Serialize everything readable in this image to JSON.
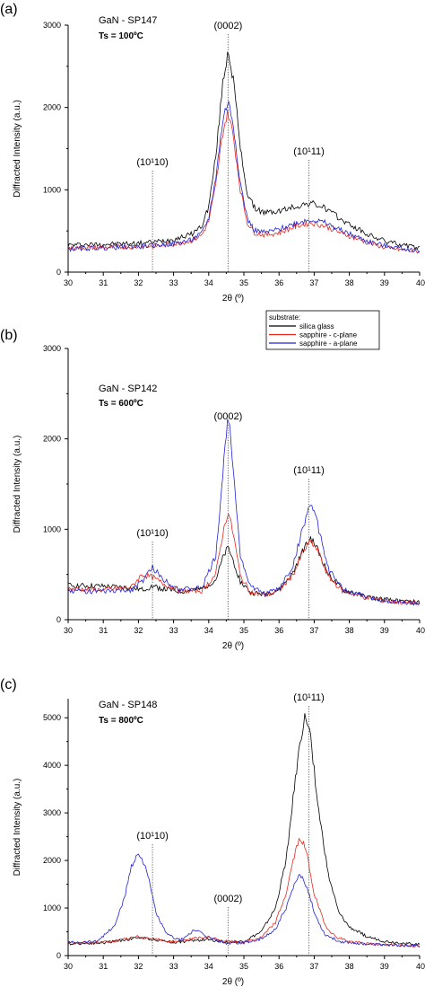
{
  "legend": {
    "title": "substrate:",
    "entries": [
      {
        "name": "silica glass",
        "color": "#000000"
      },
      {
        "name": "sapphire - c-plane",
        "color": "#e8271f"
      },
      {
        "name": "sapphire - a-plane",
        "color": "#2222d6"
      }
    ]
  },
  "chart_data": [
    {
      "type": "line",
      "panel": "(a)",
      "sample": "GaN - SP147",
      "temperature": "Ts = 100ºC",
      "xlabel": "2θ (º)",
      "ylabel": "Diffracted Intensity (a.u.)",
      "xlim": [
        30,
        40
      ],
      "ylim": [
        0,
        3000
      ],
      "xticks": [
        "30",
        "31",
        "32",
        "33",
        "34",
        "35",
        "36",
        "37",
        "38",
        "39",
        "40"
      ],
      "yticks": [
        "0",
        "1000",
        "2000",
        "3000"
      ],
      "peaks": [
        {
          "label": "(10¹10)",
          "x": 32.4
        },
        {
          "label": "(0002)",
          "x": 34.55
        },
        {
          "label": "(10¹11)",
          "x": 36.85
        }
      ],
      "series": [
        {
          "name": "silica glass",
          "x": [
            30,
            31,
            32,
            32.5,
            33,
            33.5,
            33.8,
            34,
            34.2,
            34.4,
            34.55,
            34.7,
            34.9,
            35.1,
            35.3,
            35.6,
            36,
            36.5,
            36.9,
            37.3,
            37.8,
            38.5,
            39,
            39.5,
            40
          ],
          "y": [
            330,
            340,
            350,
            370,
            400,
            460,
            560,
            800,
            1400,
            2300,
            2700,
            2350,
            1500,
            950,
            780,
            720,
            740,
            800,
            840,
            780,
            630,
            460,
            380,
            330,
            290
          ]
        },
        {
          "name": "sapphire - c-plane",
          "x": [
            30,
            31,
            32,
            32.5,
            33,
            33.5,
            33.8,
            34,
            34.2,
            34.4,
            34.55,
            34.7,
            34.9,
            35.1,
            35.3,
            35.6,
            36,
            36.5,
            36.9,
            37.3,
            37.8,
            38.5,
            39,
            39.5,
            40
          ],
          "y": [
            290,
            300,
            310,
            320,
            340,
            380,
            450,
            620,
            1050,
            1700,
            1950,
            1650,
            1000,
            600,
            480,
            450,
            480,
            560,
            600,
            560,
            470,
            360,
            300,
            270,
            250
          ]
        },
        {
          "name": "sapphire - a-plane",
          "x": [
            30,
            31,
            32,
            32.5,
            33,
            33.5,
            33.8,
            34,
            34.2,
            34.4,
            34.55,
            34.7,
            34.9,
            35.1,
            35.3,
            35.6,
            36,
            36.5,
            36.9,
            37.3,
            37.8,
            38.5,
            39,
            39.5,
            40
          ],
          "y": [
            280,
            295,
            310,
            325,
            345,
            390,
            470,
            660,
            1150,
            1850,
            2080,
            1800,
            1080,
            650,
            510,
            480,
            520,
            600,
            640,
            600,
            500,
            380,
            320,
            290,
            260
          ]
        }
      ]
    },
    {
      "type": "line",
      "panel": "(b)",
      "sample": "GaN - SP142",
      "temperature": "Ts = 600ºC",
      "xlabel": "2θ (º)",
      "ylabel": "Diffracted Intensity (a.u.)",
      "xlim": [
        30,
        40
      ],
      "ylim": [
        0,
        3000
      ],
      "xticks": [
        "30",
        "31",
        "32",
        "33",
        "34",
        "35",
        "36",
        "37",
        "38",
        "39",
        "40"
      ],
      "yticks": [
        "0",
        "1000",
        "2000",
        "3000"
      ],
      "peaks": [
        {
          "label": "(10¹10)",
          "x": 32.4
        },
        {
          "label": "(0002)",
          "x": 34.55
        },
        {
          "label": "(10¹11)",
          "x": 36.85
        }
      ],
      "series": [
        {
          "name": "silica glass",
          "x": [
            30,
            31,
            31.8,
            32.1,
            32.4,
            32.7,
            33.2,
            33.8,
            34.2,
            34.4,
            34.55,
            34.7,
            34.9,
            35.2,
            35.6,
            36,
            36.4,
            36.7,
            36.9,
            37.1,
            37.4,
            37.8,
            38.5,
            39.2,
            40
          ],
          "y": [
            380,
            370,
            350,
            330,
            370,
            340,
            310,
            340,
            440,
            680,
            800,
            650,
            420,
            300,
            280,
            330,
            520,
            780,
            900,
            780,
            500,
            330,
            250,
            210,
            190
          ]
        },
        {
          "name": "sapphire - c-plane",
          "x": [
            30,
            31,
            31.8,
            32.1,
            32.4,
            32.7,
            33.2,
            33.8,
            34.2,
            34.4,
            34.55,
            34.7,
            34.9,
            35.2,
            35.6,
            36,
            36.4,
            36.7,
            36.9,
            37.1,
            37.4,
            37.8,
            38.5,
            39.2,
            40
          ],
          "y": [
            340,
            330,
            360,
            500,
            470,
            400,
            320,
            320,
            500,
            950,
            1200,
            950,
            480,
            300,
            270,
            320,
            500,
            760,
            870,
            760,
            480,
            320,
            240,
            200,
            180
          ]
        },
        {
          "name": "sapphire - a-plane",
          "x": [
            30,
            31,
            31.8,
            32.1,
            32.4,
            32.7,
            33.2,
            33.8,
            34.2,
            34.4,
            34.55,
            34.7,
            34.9,
            35.2,
            35.6,
            36,
            36.4,
            36.7,
            36.9,
            37.1,
            37.4,
            37.8,
            38.5,
            39.2,
            40
          ],
          "y": [
            320,
            310,
            330,
            420,
            580,
            450,
            330,
            350,
            700,
            1600,
            2300,
            1700,
            700,
            360,
            290,
            340,
            600,
            1050,
            1300,
            1050,
            560,
            340,
            250,
            200,
            180
          ]
        }
      ]
    },
    {
      "type": "line",
      "panel": "(c)",
      "sample": "GaN - SP148",
      "temperature": "Ts = 800ºC",
      "xlabel": "2θ (º)",
      "ylabel": "Diffracted Intensity (a.u.)",
      "xlim": [
        30,
        40
      ],
      "ylim": [
        0,
        5400
      ],
      "xticks": [
        "30",
        "31",
        "32",
        "33",
        "34",
        "35",
        "36",
        "37",
        "38",
        "39",
        "40"
      ],
      "yticks": [
        "0",
        "1000",
        "2000",
        "3000",
        "4000",
        "5000"
      ],
      "peaks": [
        {
          "label": "(10¹10)",
          "x": 32.4
        },
        {
          "label": "(0002)",
          "x": 34.55
        },
        {
          "label": "(10¹11)",
          "x": 36.85
        }
      ],
      "series": [
        {
          "name": "silica glass",
          "x": [
            30,
            31,
            31.6,
            32,
            32.4,
            33,
            33.6,
            34,
            34.5,
            35,
            35.5,
            35.9,
            36.2,
            36.4,
            36.6,
            36.75,
            36.9,
            37.1,
            37.4,
            37.7,
            38,
            38.5,
            39,
            40
          ],
          "y": [
            250,
            270,
            330,
            380,
            340,
            280,
            320,
            340,
            280,
            300,
            500,
            1000,
            2000,
            3300,
            4500,
            5050,
            4600,
            3200,
            1700,
            900,
            600,
            400,
            300,
            230
          ]
        },
        {
          "name": "sapphire - c-plane",
          "x": [
            30,
            31,
            31.6,
            32,
            32.4,
            33,
            33.6,
            34,
            34.5,
            35,
            35.5,
            35.9,
            36.2,
            36.4,
            36.55,
            36.65,
            36.8,
            37,
            37.3,
            37.6,
            38,
            38.5,
            39,
            40
          ],
          "y": [
            260,
            280,
            340,
            400,
            350,
            290,
            360,
            380,
            300,
            280,
            380,
            700,
            1300,
            2000,
            2400,
            2450,
            2100,
            1300,
            650,
            400,
            300,
            250,
            230,
            200
          ]
        },
        {
          "name": "sapphire - a-plane",
          "x": [
            30,
            30.8,
            31.3,
            31.6,
            31.8,
            32,
            32.2,
            32.5,
            32.8,
            33.2,
            33.6,
            34,
            34.5,
            35,
            35.5,
            35.9,
            36.2,
            36.45,
            36.6,
            36.8,
            37,
            37.3,
            37.7,
            38.5,
            40
          ],
          "y": [
            280,
            300,
            600,
            1200,
            1900,
            2150,
            1900,
            900,
            450,
            320,
            540,
            380,
            260,
            270,
            340,
            560,
            1000,
            1500,
            1700,
            1450,
            900,
            450,
            300,
            240,
            200
          ]
        }
      ]
    }
  ]
}
